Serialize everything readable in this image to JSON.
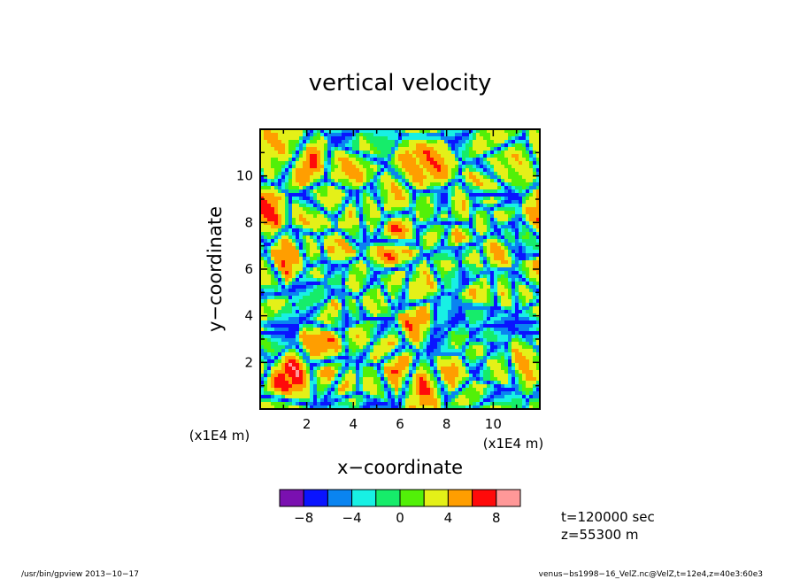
{
  "chart_data": {
    "type": "heatmap",
    "title": "vertical velocity",
    "xlabel": "x−coordinate",
    "ylabel": "y−coordinate",
    "x_unit_label": "(x1E4 m)",
    "y_unit_label": "(x1E4 m)",
    "xlim": [
      0,
      12
    ],
    "ylim": [
      0,
      12
    ],
    "x_ticks": [
      2,
      4,
      6,
      8,
      10
    ],
    "y_ticks": [
      2,
      4,
      6,
      8,
      10
    ],
    "x_tick_labels": [
      "2",
      "4",
      "6",
      "8",
      "10"
    ],
    "y_tick_labels": [
      "2",
      "4",
      "6",
      "8",
      "10"
    ],
    "colorbar": {
      "colors": [
        "#7a10b0",
        "#0a14ff",
        "#0a84f0",
        "#18f0e4",
        "#16ec6a",
        "#52f008",
        "#e4f018",
        "#ff9e00",
        "#ff0a0a",
        "#ff9898"
      ],
      "boundaries": [
        -10,
        -8,
        -6,
        -4,
        -2,
        0,
        2,
        4,
        6,
        8,
        10
      ],
      "tick_values": [
        -8,
        -4,
        0,
        4,
        8
      ],
      "tick_labels": [
        "−8",
        "−4",
        "0",
        "4",
        "8"
      ]
    },
    "field_description_levels": "cellular convection pattern: narrow negative (downdraft) lanes around broad positive (updraft) cells"
  },
  "annotations": {
    "time": "t=120000 sec",
    "height": "z=55300 m"
  },
  "footer": {
    "left": "/usr/bin/gpview   2013−10−17",
    "right": "venus−bs1998−16_VelZ.nc@VelZ,t=12e4,z=40e3:60e3"
  }
}
